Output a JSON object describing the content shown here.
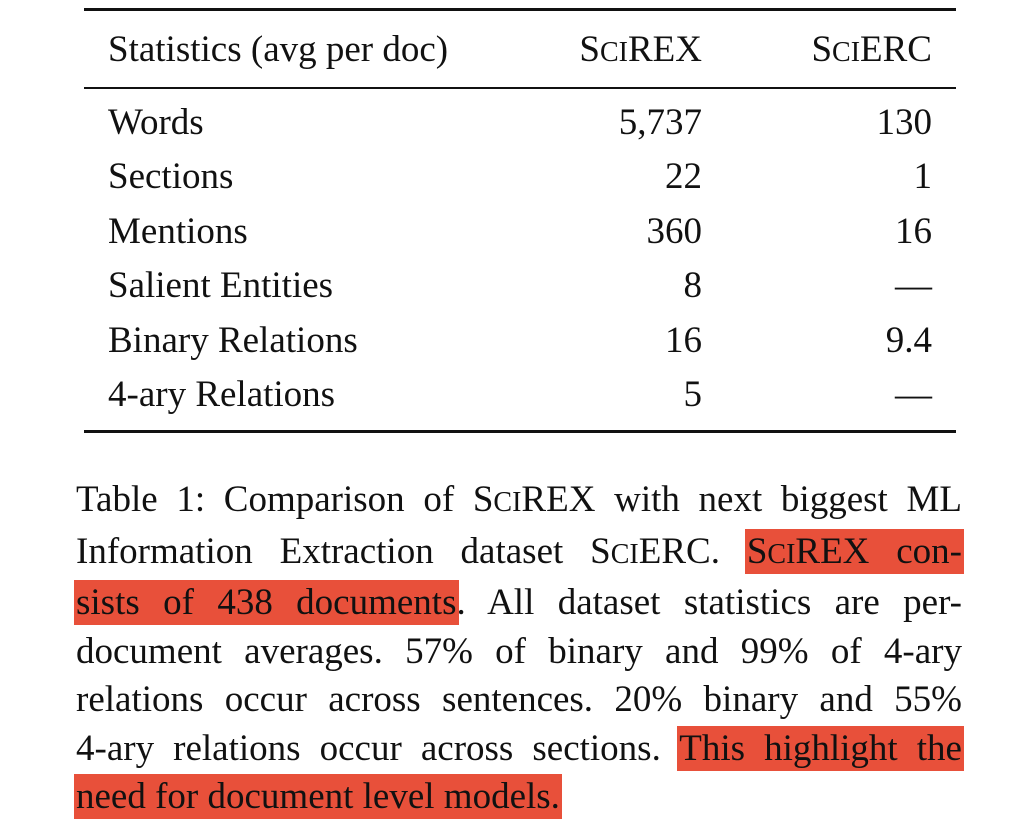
{
  "table": {
    "headers": {
      "label": "Statistics (avg per doc)",
      "col_a": "SciREX",
      "col_b": "SciERC"
    },
    "rows": [
      {
        "label": "Words",
        "a": "5,737",
        "b": "130"
      },
      {
        "label": "Sections",
        "a": "22",
        "b": "1"
      },
      {
        "label": "Mentions",
        "a": "360",
        "b": "16"
      },
      {
        "label": "Salient Entities",
        "a": "8",
        "b": "—"
      },
      {
        "label": "Binary Relations",
        "a": "16",
        "b": "9.4"
      },
      {
        "label": "4-ary Relations",
        "a": "5",
        "b": "—"
      }
    ]
  },
  "caption": {
    "line1": "Table 1: Comparison of SciREX with next biggest ML",
    "line2_a": "Information Extraction dataset SciERC.",
    "line2_b": "SciREX con-",
    "line3_a": "sists of 438 documents",
    "line3_b": ".  All dataset statistics are per-",
    "line4": "document averages.  57% of binary and 99% of 4-ary",
    "line5": "relations occur across sentences. 20% binary and 55%",
    "line6_a": "4-ary relations occur across sections.",
    "line6_b": "This highlight the",
    "line7": "need for document level models."
  },
  "highlight_color": "#e8503a"
}
